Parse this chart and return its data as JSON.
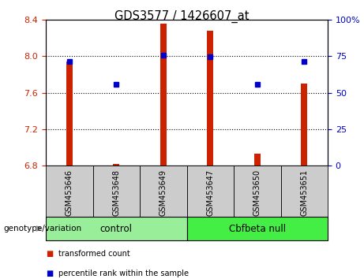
{
  "title": "GDS3577 / 1426607_at",
  "samples": [
    "GSM453646",
    "GSM453648",
    "GSM453649",
    "GSM453647",
    "GSM453650",
    "GSM453651"
  ],
  "bar_values": [
    7.94,
    6.82,
    8.36,
    8.28,
    6.93,
    7.7
  ],
  "bar_base": 6.8,
  "percentile_values": [
    7.94,
    7.69,
    8.01,
    7.99,
    7.69,
    7.94
  ],
  "ylim": [
    6.8,
    8.4
  ],
  "y2lim": [
    0,
    100
  ],
  "yticks": [
    6.8,
    7.2,
    7.6,
    8.0,
    8.4
  ],
  "y2ticks": [
    0,
    25,
    50,
    75,
    100
  ],
  "bar_color": "#cc2200",
  "dot_color": "#0000cc",
  "groups": [
    {
      "label": "control",
      "indices": [
        0,
        1,
        2
      ],
      "color": "#99ee99"
    },
    {
      "label": "Cbfbeta null",
      "indices": [
        3,
        4,
        5
      ],
      "color": "#44ee44"
    }
  ],
  "genotype_label": "genotype/variation",
  "sample_box_color": "#cccccc",
  "legend_items": [
    {
      "label": "transformed count",
      "color": "#cc2200"
    },
    {
      "label": "percentile rank within the sample",
      "color": "#0000cc"
    }
  ],
  "fig_bg": "#ffffff"
}
